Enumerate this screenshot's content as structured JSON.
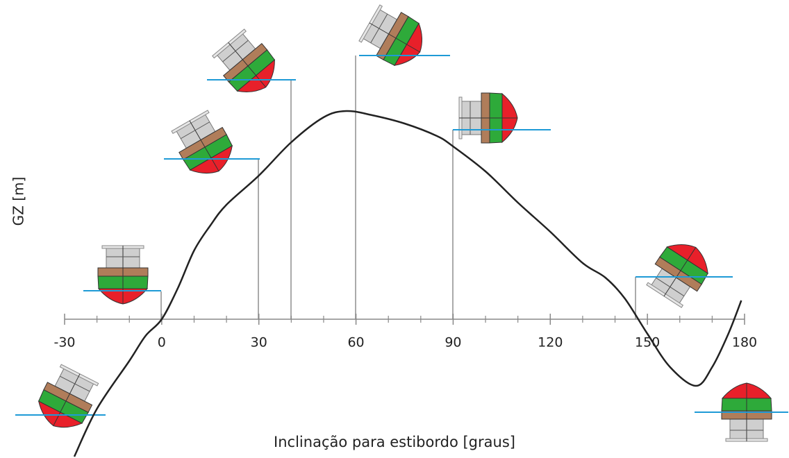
{
  "chart_data": {
    "type": "line",
    "x_label": "Inclinação para estibordo [graus]",
    "y_label": "GZ [m]",
    "x": [
      -27,
      -20,
      -10,
      -5,
      0,
      5,
      10,
      15,
      20,
      30,
      40,
      50,
      57,
      65,
      75,
      85,
      90,
      100,
      110,
      120,
      130,
      137,
      143,
      150,
      157,
      165,
      170,
      175,
      179
    ],
    "values": [
      -0.66,
      -0.43,
      -0.2,
      -0.08,
      0,
      0.15,
      0.33,
      0.45,
      0.55,
      0.69,
      0.85,
      0.97,
      1.0,
      0.98,
      0.94,
      0.88,
      0.83,
      0.71,
      0.56,
      0.42,
      0.27,
      0.2,
      0.1,
      -0.07,
      -0.23,
      -0.32,
      -0.23,
      -0.07,
      0.09
    ],
    "color": "#222222",
    "xlim": [
      -30,
      180
    ],
    "xticks": [
      -30,
      0,
      30,
      60,
      90,
      120,
      150,
      180
    ],
    "xminorticks": [
      -20,
      -10,
      10,
      20,
      40,
      50,
      70,
      80,
      100,
      110,
      130,
      140,
      160,
      170
    ],
    "ylim": [
      -0.7,
      1.3
    ]
  }
}
